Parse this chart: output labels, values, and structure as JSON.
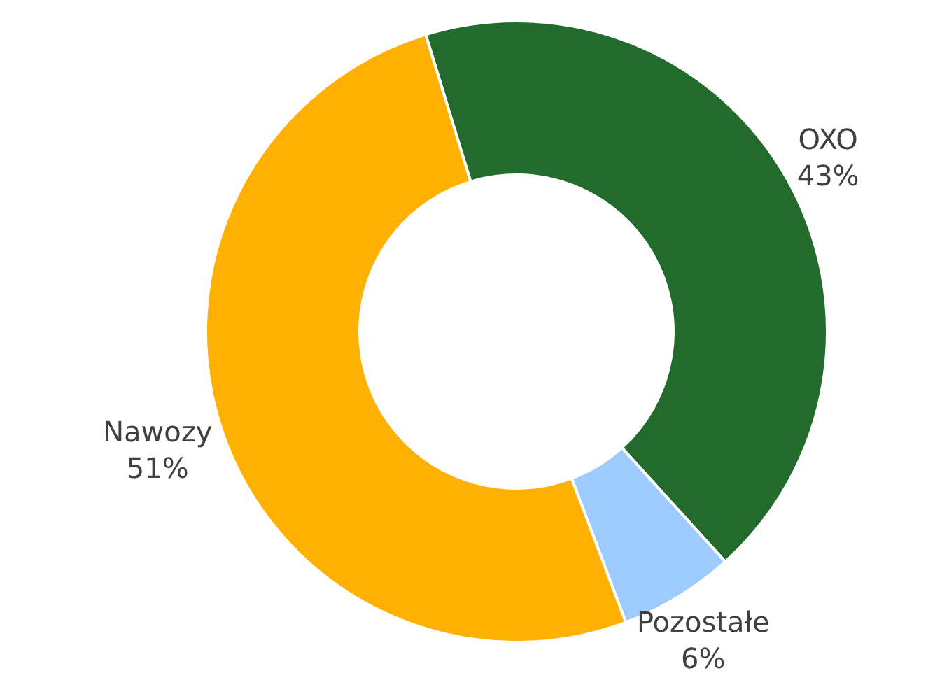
{
  "chart_data": {
    "type": "donut",
    "categories": [
      "OXO",
      "Pozostałe",
      "Nawozy"
    ],
    "values": [
      43,
      6,
      51
    ],
    "value_labels": [
      "43%",
      "6%",
      "51%"
    ],
    "colors": [
      "#226b2d",
      "#9dcbff",
      "#ffb000"
    ],
    "legend": false
  }
}
